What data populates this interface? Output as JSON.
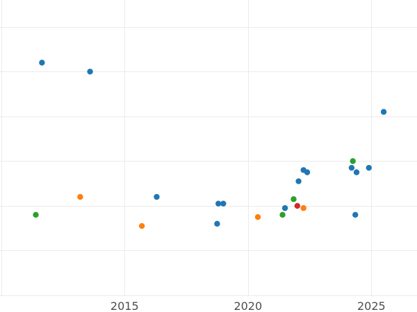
{
  "chart_data": {
    "type": "scatter",
    "title": "",
    "xlabel": "",
    "ylabel": "",
    "xlim": [
      2009.95,
      2026.85
    ],
    "ylim": [
      0.0,
      6.6
    ],
    "x_ticks": [
      2015,
      2020,
      2025
    ],
    "x_tick_labels": [
      "2015",
      "2020",
      "2025"
    ],
    "y_gridlines": [
      0.0,
      1.0,
      2.0,
      3.0,
      4.0,
      5.0,
      6.0
    ],
    "grid": true,
    "legend": "none",
    "colors": {
      "blue": "#1f77b4",
      "orange": "#ff7f0e",
      "green": "#2ca02c",
      "red": "#d62728",
      "grid": "#ebebeb",
      "tick_text": "#4d4d4d"
    },
    "series": [
      {
        "color": "blue",
        "points": [
          {
            "x": 2011.65,
            "y": 5.2
          },
          {
            "x": 2013.6,
            "y": 5.0
          },
          {
            "x": 2016.3,
            "y": 2.2
          },
          {
            "x": 2018.75,
            "y": 1.6
          },
          {
            "x": 2018.8,
            "y": 2.05
          },
          {
            "x": 2019.0,
            "y": 2.05
          },
          {
            "x": 2021.5,
            "y": 1.95
          },
          {
            "x": 2022.05,
            "y": 2.55
          },
          {
            "x": 2022.25,
            "y": 2.8
          },
          {
            "x": 2022.4,
            "y": 2.75
          },
          {
            "x": 2024.2,
            "y": 2.85
          },
          {
            "x": 2024.35,
            "y": 1.8
          },
          {
            "x": 2024.4,
            "y": 2.75
          },
          {
            "x": 2024.9,
            "y": 2.85
          },
          {
            "x": 2025.5,
            "y": 4.1
          }
        ]
      },
      {
        "color": "orange",
        "points": [
          {
            "x": 2013.2,
            "y": 2.2
          },
          {
            "x": 2015.7,
            "y": 1.55
          },
          {
            "x": 2020.4,
            "y": 1.75
          },
          {
            "x": 2022.25,
            "y": 1.95
          }
        ]
      },
      {
        "color": "green",
        "points": [
          {
            "x": 2011.4,
            "y": 1.8
          },
          {
            "x": 2021.4,
            "y": 1.8
          },
          {
            "x": 2021.85,
            "y": 2.15
          },
          {
            "x": 2024.25,
            "y": 3.0
          }
        ]
      },
      {
        "color": "red",
        "points": [
          {
            "x": 2022.0,
            "y": 2.0
          }
        ]
      }
    ]
  }
}
